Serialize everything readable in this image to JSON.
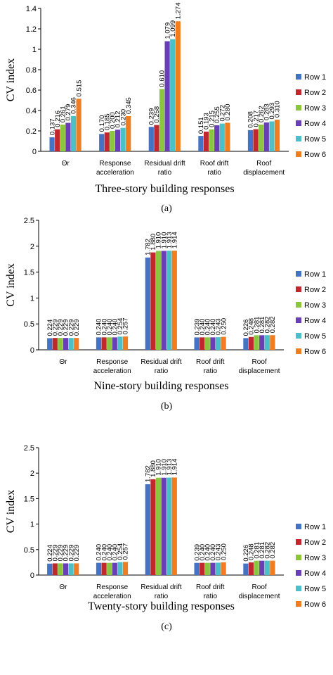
{
  "colors": [
    "#4472C4",
    "#C0282D",
    "#8CC63F",
    "#6A3FB5",
    "#4BC0C8",
    "#F07D1F"
  ],
  "chart_data": [
    {
      "type": "bar",
      "ylabel": "CV index",
      "xlabel": "Three-story building responses",
      "caption": "(a)",
      "ylim": [
        0,
        1.4
      ],
      "yticks": [
        "0",
        "0.2",
        "0.4",
        "0.6",
        "0.8",
        "1",
        "1.2",
        "1.4"
      ],
      "categories": [
        [
          "Θr"
        ],
        [
          "Response",
          "acceleration"
        ],
        [
          "Residual drift",
          "ratio"
        ],
        [
          "Roof drift",
          "ratio"
        ],
        [
          "Roof",
          "displacement"
        ]
      ],
      "series": [
        {
          "name": "Row 1",
          "values": [
            0.137,
            0.17,
            0.239,
            0.151,
            0.208
          ],
          "labels": [
            "0.137",
            "0.170",
            "0.239",
            "0.151",
            "0.208"
          ]
        },
        {
          "name": "Row 2",
          "values": [
            0.216,
            0.185,
            0.258,
            0.193,
            0.217
          ],
          "labels": [
            "0.216",
            "0.185",
            "0.258",
            "0.193",
            "0.217"
          ]
        },
        {
          "name": "Row 3",
          "values": [
            0.261,
            0.2,
            0.61,
            0.215,
            0.262
          ],
          "labels": [
            "0.261",
            "0.200",
            "0.610",
            "0.215",
            "0.262"
          ]
        },
        {
          "name": "Row 4",
          "values": [
            0.279,
            0.212,
            1.079,
            0.255,
            0.283
          ],
          "labels": [
            "0.279",
            "0.212",
            "1.079",
            "0.255",
            "0.283"
          ]
        },
        {
          "name": "Row 5",
          "values": [
            0.346,
            0.23,
            1.099,
            0.272,
            0.293
          ],
          "labels": [
            "0.346",
            "0.230",
            "1.099",
            "0.272",
            "0.293"
          ]
        },
        {
          "name": "Row 6",
          "values": [
            0.515,
            0.345,
            1.274,
            0.28,
            0.31
          ],
          "labels": [
            "0.515",
            "0.345",
            "1.274",
            "0.280",
            "0.310"
          ]
        }
      ]
    },
    {
      "type": "bar",
      "ylabel": "CV index",
      "xlabel": "Nine-story building responses",
      "caption": "(b)",
      "ylim": [
        0,
        2.5
      ],
      "yticks": [
        "0",
        "0.5",
        "1",
        "1.5",
        "2",
        "2.5"
      ],
      "categories": [
        [
          "Θr"
        ],
        [
          "Response",
          "acceleration"
        ],
        [
          "Residual drift",
          "ratio"
        ],
        [
          "Roof drift",
          "ratio"
        ],
        [
          "Roof",
          "displacement"
        ]
      ],
      "series": [
        {
          "name": "Row 1",
          "values": [
            0.224,
            0.24,
            1.782,
            0.239,
            0.226
          ],
          "labels": [
            "0.224",
            "0.240",
            "1.782",
            "0.239",
            "0.226"
          ]
        },
        {
          "name": "Row 2",
          "values": [
            0.229,
            0.24,
            1.88,
            0.24,
            0.248
          ],
          "labels": [
            "0.229",
            "0.240",
            "1.880",
            "0.240",
            "0.248"
          ]
        },
        {
          "name": "Row 3",
          "values": [
            0.229,
            0.24,
            1.91,
            0.24,
            0.281
          ],
          "labels": [
            "0.229",
            "0.240",
            "1.910",
            "0.240",
            "0.281"
          ]
        },
        {
          "name": "Row 4",
          "values": [
            0.229,
            0.24,
            1.91,
            0.24,
            0.281
          ],
          "labels": [
            "0.229",
            "0.240",
            "1.910",
            "0.240",
            "0.281"
          ]
        },
        {
          "name": "Row 5",
          "values": [
            0.229,
            0.254,
            1.913,
            0.243,
            0.282
          ],
          "labels": [
            "0.229",
            "0.254",
            "1.913",
            "0.243",
            "0.282"
          ]
        },
        {
          "name": "Row 6",
          "values": [
            0.229,
            0.257,
            1.914,
            0.25,
            0.282
          ],
          "labels": [
            "0.229",
            "0.257",
            "1.914",
            "0.250",
            "0.282"
          ]
        }
      ]
    },
    {
      "type": "bar",
      "ylabel": "CV index",
      "xlabel": "Twenty-story building responses",
      "caption": "(c)",
      "ylim": [
        0,
        2.5
      ],
      "yticks": [
        "0",
        "0.5",
        "1",
        "1.5",
        "2",
        "2.5"
      ],
      "categories": [
        [
          "Θr"
        ],
        [
          "Response",
          "acceleration"
        ],
        [
          "Residual drift",
          "ratio"
        ],
        [
          "Roof drift",
          "ratio"
        ],
        [
          "Roof",
          "displacement"
        ]
      ],
      "series": [
        {
          "name": "Row 1",
          "values": [
            0.224,
            0.24,
            1.782,
            0.239,
            0.226
          ],
          "labels": [
            "0.224",
            "0.240",
            "1.782",
            "0.239",
            "0.226"
          ]
        },
        {
          "name": "Row 2",
          "values": [
            0.229,
            0.24,
            1.88,
            0.24,
            0.248
          ],
          "labels": [
            "0.229",
            "0.240",
            "1.880",
            "0.240",
            "0.248"
          ]
        },
        {
          "name": "Row 3",
          "values": [
            0.229,
            0.24,
            1.91,
            0.24,
            0.281
          ],
          "labels": [
            "0.229",
            "0.240",
            "1.910",
            "0.240",
            "0.281"
          ]
        },
        {
          "name": "Row 4",
          "values": [
            0.229,
            0.24,
            1.91,
            0.24,
            0.281
          ],
          "labels": [
            "0.229",
            "0.240",
            "1.910",
            "0.240",
            "0.281"
          ]
        },
        {
          "name": "Row 5",
          "values": [
            0.229,
            0.254,
            1.913,
            0.243,
            0.282
          ],
          "labels": [
            "0.229",
            "0.254",
            "1.913",
            "0.243",
            "0.282"
          ]
        },
        {
          "name": "Row 6",
          "values": [
            0.229,
            0.257,
            1.914,
            0.25,
            0.282
          ],
          "labels": [
            "0.229",
            "0.257",
            "1.914",
            "0.250",
            "0.282"
          ]
        }
      ]
    }
  ]
}
